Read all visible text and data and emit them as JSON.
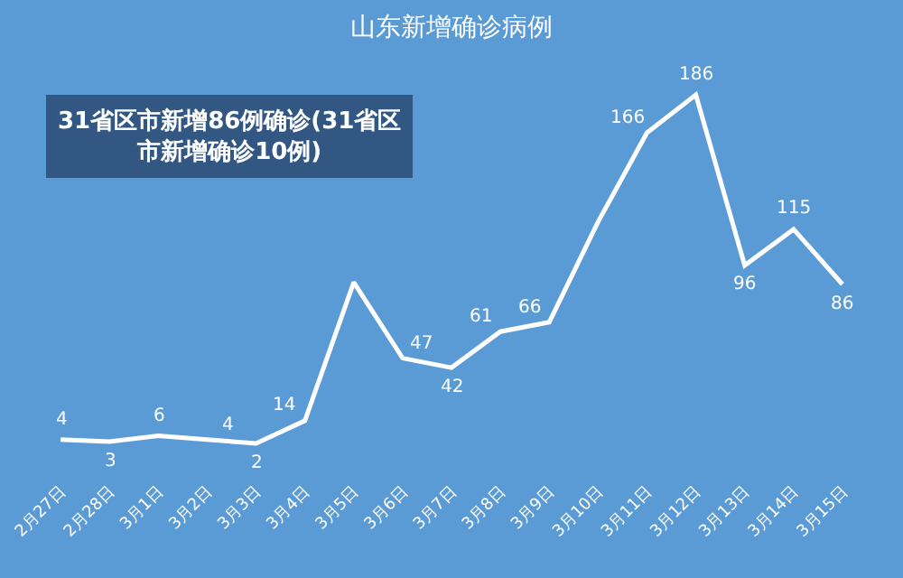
{
  "chart_data": {
    "type": "line",
    "title": "山东新增确诊病例",
    "annotations": [
      "31省区市新增86例确诊(31省区市新增确诊10例)"
    ],
    "categories": [
      "2月27日",
      "2月28日",
      "3月1日",
      "3月2日",
      "3月3日",
      "3月4日",
      "3月5日",
      "3月6日",
      "3月7日",
      "3月8日",
      "3月9日",
      "3月10日",
      "3月11日",
      "3月12日",
      "3月13日",
      "3月14日",
      "3月15日"
    ],
    "series": [
      {
        "color": "#ffffff",
        "values": [
          4,
          3,
          6,
          4,
          2,
          14,
          87,
          47,
          42,
          61,
          66,
          119,
          166,
          186,
          96,
          115,
          86
        ],
        "value_labels": [
          "4",
          "3",
          "6",
          "4",
          "2",
          "14",
          null,
          "47",
          "42",
          "61",
          "66",
          null,
          "166",
          "186",
          "96",
          "115",
          "86"
        ]
      }
    ],
    "marker": "none",
    "grid": false
  }
}
